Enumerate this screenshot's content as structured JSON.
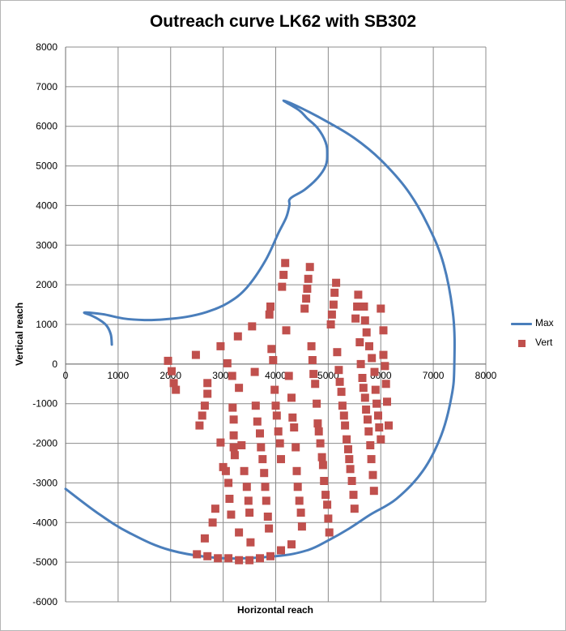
{
  "chart_data": {
    "type": "scatter",
    "title": "Outreach curve LK62 with SB302",
    "xlabel": "Horizontal reach",
    "ylabel": "Vertical reach",
    "xlim": [
      0,
      8000
    ],
    "ylim": [
      -6000,
      8000
    ],
    "x_ticks": [
      "0",
      "1000",
      "2000",
      "3000",
      "4000",
      "5000",
      "6000",
      "7000",
      "8000"
    ],
    "y_ticks": [
      "8000",
      "7000",
      "6000",
      "5000",
      "4000",
      "3000",
      "2000",
      "1000",
      "0",
      "-1000",
      "-2000",
      "-3000",
      "-4000",
      "-5000",
      "-6000"
    ],
    "grid": true,
    "legend_position": "right",
    "series": [
      {
        "name": "Max",
        "kind": "line",
        "color": "#4a7ebb",
        "points": [
          [
            880,
            490
          ],
          [
            860,
            750
          ],
          [
            780,
            970
          ],
          [
            650,
            1110
          ],
          [
            500,
            1220
          ],
          [
            360,
            1300
          ],
          [
            700,
            1260
          ],
          [
            1100,
            1150
          ],
          [
            1500,
            1110
          ],
          [
            1900,
            1130
          ],
          [
            2300,
            1190
          ],
          [
            2700,
            1320
          ],
          [
            3100,
            1550
          ],
          [
            3450,
            1930
          ],
          [
            3800,
            2600
          ],
          [
            4050,
            3300
          ],
          [
            4200,
            3700
          ],
          [
            4260,
            4000
          ],
          [
            4280,
            4180
          ],
          [
            4550,
            4400
          ],
          [
            4800,
            4700
          ],
          [
            4950,
            5000
          ],
          [
            4980,
            5300
          ],
          [
            4950,
            5600
          ],
          [
            4800,
            5950
          ],
          [
            4600,
            6200
          ],
          [
            4450,
            6400
          ],
          [
            4150,
            6650
          ],
          [
            4500,
            6450
          ],
          [
            5000,
            6100
          ],
          [
            5500,
            5700
          ],
          [
            6000,
            5150
          ],
          [
            6500,
            4400
          ],
          [
            6900,
            3500
          ],
          [
            7200,
            2500
          ],
          [
            7380,
            1200
          ],
          [
            7400,
            0
          ],
          [
            7350,
            -800
          ],
          [
            7150,
            -1800
          ],
          [
            6800,
            -2700
          ],
          [
            6300,
            -3400
          ],
          [
            5800,
            -3800
          ],
          [
            5400,
            -4150
          ],
          [
            5000,
            -4450
          ],
          [
            4600,
            -4700
          ],
          [
            4000,
            -4850
          ],
          [
            3000,
            -4900
          ],
          [
            2000,
            -4700
          ],
          [
            1200,
            -4250
          ],
          [
            600,
            -3750
          ],
          [
            0,
            -3150
          ]
        ]
      },
      {
        "name": "Vert",
        "kind": "markers",
        "color": "#c0504d",
        "points": [
          [
            1950,
            80
          ],
          [
            2020,
            -180
          ],
          [
            2060,
            -480
          ],
          [
            2100,
            -650
          ],
          [
            2480,
            230
          ],
          [
            2550,
            -1550
          ],
          [
            2600,
            -1300
          ],
          [
            2650,
            -1050
          ],
          [
            2700,
            -750
          ],
          [
            2700,
            -480
          ],
          [
            2950,
            450
          ],
          [
            2950,
            -1980
          ],
          [
            3000,
            -2600
          ],
          [
            3080,
            20
          ],
          [
            3050,
            -2700
          ],
          [
            3100,
            -3000
          ],
          [
            3120,
            -3400
          ],
          [
            3150,
            -3800
          ],
          [
            3170,
            -300
          ],
          [
            3180,
            -1100
          ],
          [
            3200,
            -1400
          ],
          [
            3200,
            -1800
          ],
          [
            3200,
            -2100
          ],
          [
            3220,
            -2300
          ],
          [
            3280,
            700
          ],
          [
            3300,
            -600
          ],
          [
            3350,
            -2050
          ],
          [
            3400,
            -2700
          ],
          [
            3450,
            -3100
          ],
          [
            3480,
            -3450
          ],
          [
            3500,
            -3750
          ],
          [
            3520,
            -4500
          ],
          [
            3550,
            950
          ],
          [
            3600,
            -200
          ],
          [
            3620,
            -1050
          ],
          [
            3650,
            -1450
          ],
          [
            3700,
            -1750
          ],
          [
            3720,
            -2100
          ],
          [
            3750,
            -2400
          ],
          [
            3780,
            -2750
          ],
          [
            3800,
            -3100
          ],
          [
            3820,
            -3450
          ],
          [
            3850,
            -3850
          ],
          [
            3870,
            -4150
          ],
          [
            3880,
            1250
          ],
          [
            3900,
            1450
          ],
          [
            3920,
            380
          ],
          [
            3950,
            100
          ],
          [
            3980,
            -650
          ],
          [
            4000,
            -1050
          ],
          [
            4020,
            -1300
          ],
          [
            4050,
            -1700
          ],
          [
            4080,
            -2000
          ],
          [
            4100,
            -2400
          ],
          [
            4120,
            1950
          ],
          [
            4150,
            2250
          ],
          [
            4180,
            2550
          ],
          [
            4200,
            850
          ],
          [
            4250,
            -300
          ],
          [
            4300,
            -850
          ],
          [
            4320,
            -1350
          ],
          [
            4350,
            -1600
          ],
          [
            4380,
            -2100
          ],
          [
            4400,
            -2700
          ],
          [
            4420,
            -3100
          ],
          [
            4450,
            -3450
          ],
          [
            4480,
            -3750
          ],
          [
            4500,
            -4100
          ],
          [
            4550,
            1400
          ],
          [
            4580,
            1650
          ],
          [
            4600,
            1900
          ],
          [
            4620,
            2150
          ],
          [
            4650,
            2450
          ],
          [
            4680,
            450
          ],
          [
            4700,
            100
          ],
          [
            4720,
            -250
          ],
          [
            4750,
            -500
          ],
          [
            4780,
            -1000
          ],
          [
            4800,
            -1500
          ],
          [
            4820,
            -1700
          ],
          [
            4850,
            -2000
          ],
          [
            4880,
            -2350
          ],
          [
            4900,
            -2550
          ],
          [
            4920,
            -2950
          ],
          [
            4950,
            -3300
          ],
          [
            4980,
            -3550
          ],
          [
            5000,
            -3900
          ],
          [
            5020,
            -4250
          ],
          [
            5050,
            1000
          ],
          [
            5070,
            1250
          ],
          [
            5100,
            1500
          ],
          [
            5120,
            1800
          ],
          [
            5150,
            2050
          ],
          [
            5170,
            300
          ],
          [
            5200,
            -150
          ],
          [
            5220,
            -450
          ],
          [
            5250,
            -700
          ],
          [
            5270,
            -1050
          ],
          [
            5300,
            -1300
          ],
          [
            5320,
            -1550
          ],
          [
            5350,
            -1900
          ],
          [
            5380,
            -2150
          ],
          [
            5400,
            -2400
          ],
          [
            5420,
            -2650
          ],
          [
            5450,
            -2950
          ],
          [
            5480,
            -3300
          ],
          [
            5500,
            -3650
          ],
          [
            5520,
            1150
          ],
          [
            5550,
            1450
          ],
          [
            5570,
            1750
          ],
          [
            5600,
            550
          ],
          [
            5620,
            0
          ],
          [
            5650,
            -350
          ],
          [
            5670,
            -600
          ],
          [
            5700,
            -850
          ],
          [
            5720,
            -1150
          ],
          [
            5750,
            -1400
          ],
          [
            5770,
            -1700
          ],
          [
            5800,
            -2050
          ],
          [
            5820,
            -2400
          ],
          [
            5850,
            -2800
          ],
          [
            5870,
            -3200
          ],
          [
            5680,
            1450
          ],
          [
            5700,
            1100
          ],
          [
            5730,
            800
          ],
          [
            5780,
            450
          ],
          [
            5830,
            150
          ],
          [
            5880,
            -200
          ],
          [
            5900,
            -650
          ],
          [
            5920,
            -1000
          ],
          [
            5950,
            -1300
          ],
          [
            5970,
            -1600
          ],
          [
            6000,
            -1900
          ],
          [
            6050,
            230
          ],
          [
            6080,
            -50
          ],
          [
            6100,
            -500
          ],
          [
            6120,
            -950
          ],
          [
            6150,
            -1550
          ],
          [
            6000,
            1400
          ],
          [
            6050,
            850
          ],
          [
            4300,
            -4550
          ],
          [
            4100,
            -4700
          ],
          [
            3900,
            -4850
          ],
          [
            3700,
            -4900
          ],
          [
            3500,
            -4950
          ],
          [
            3300,
            -4950
          ],
          [
            3100,
            -4900
          ],
          [
            2900,
            -4900
          ],
          [
            2700,
            -4850
          ],
          [
            2500,
            -4800
          ],
          [
            2650,
            -4400
          ],
          [
            2800,
            -4000
          ],
          [
            2850,
            -3650
          ],
          [
            3300,
            -4250
          ]
        ]
      }
    ]
  }
}
